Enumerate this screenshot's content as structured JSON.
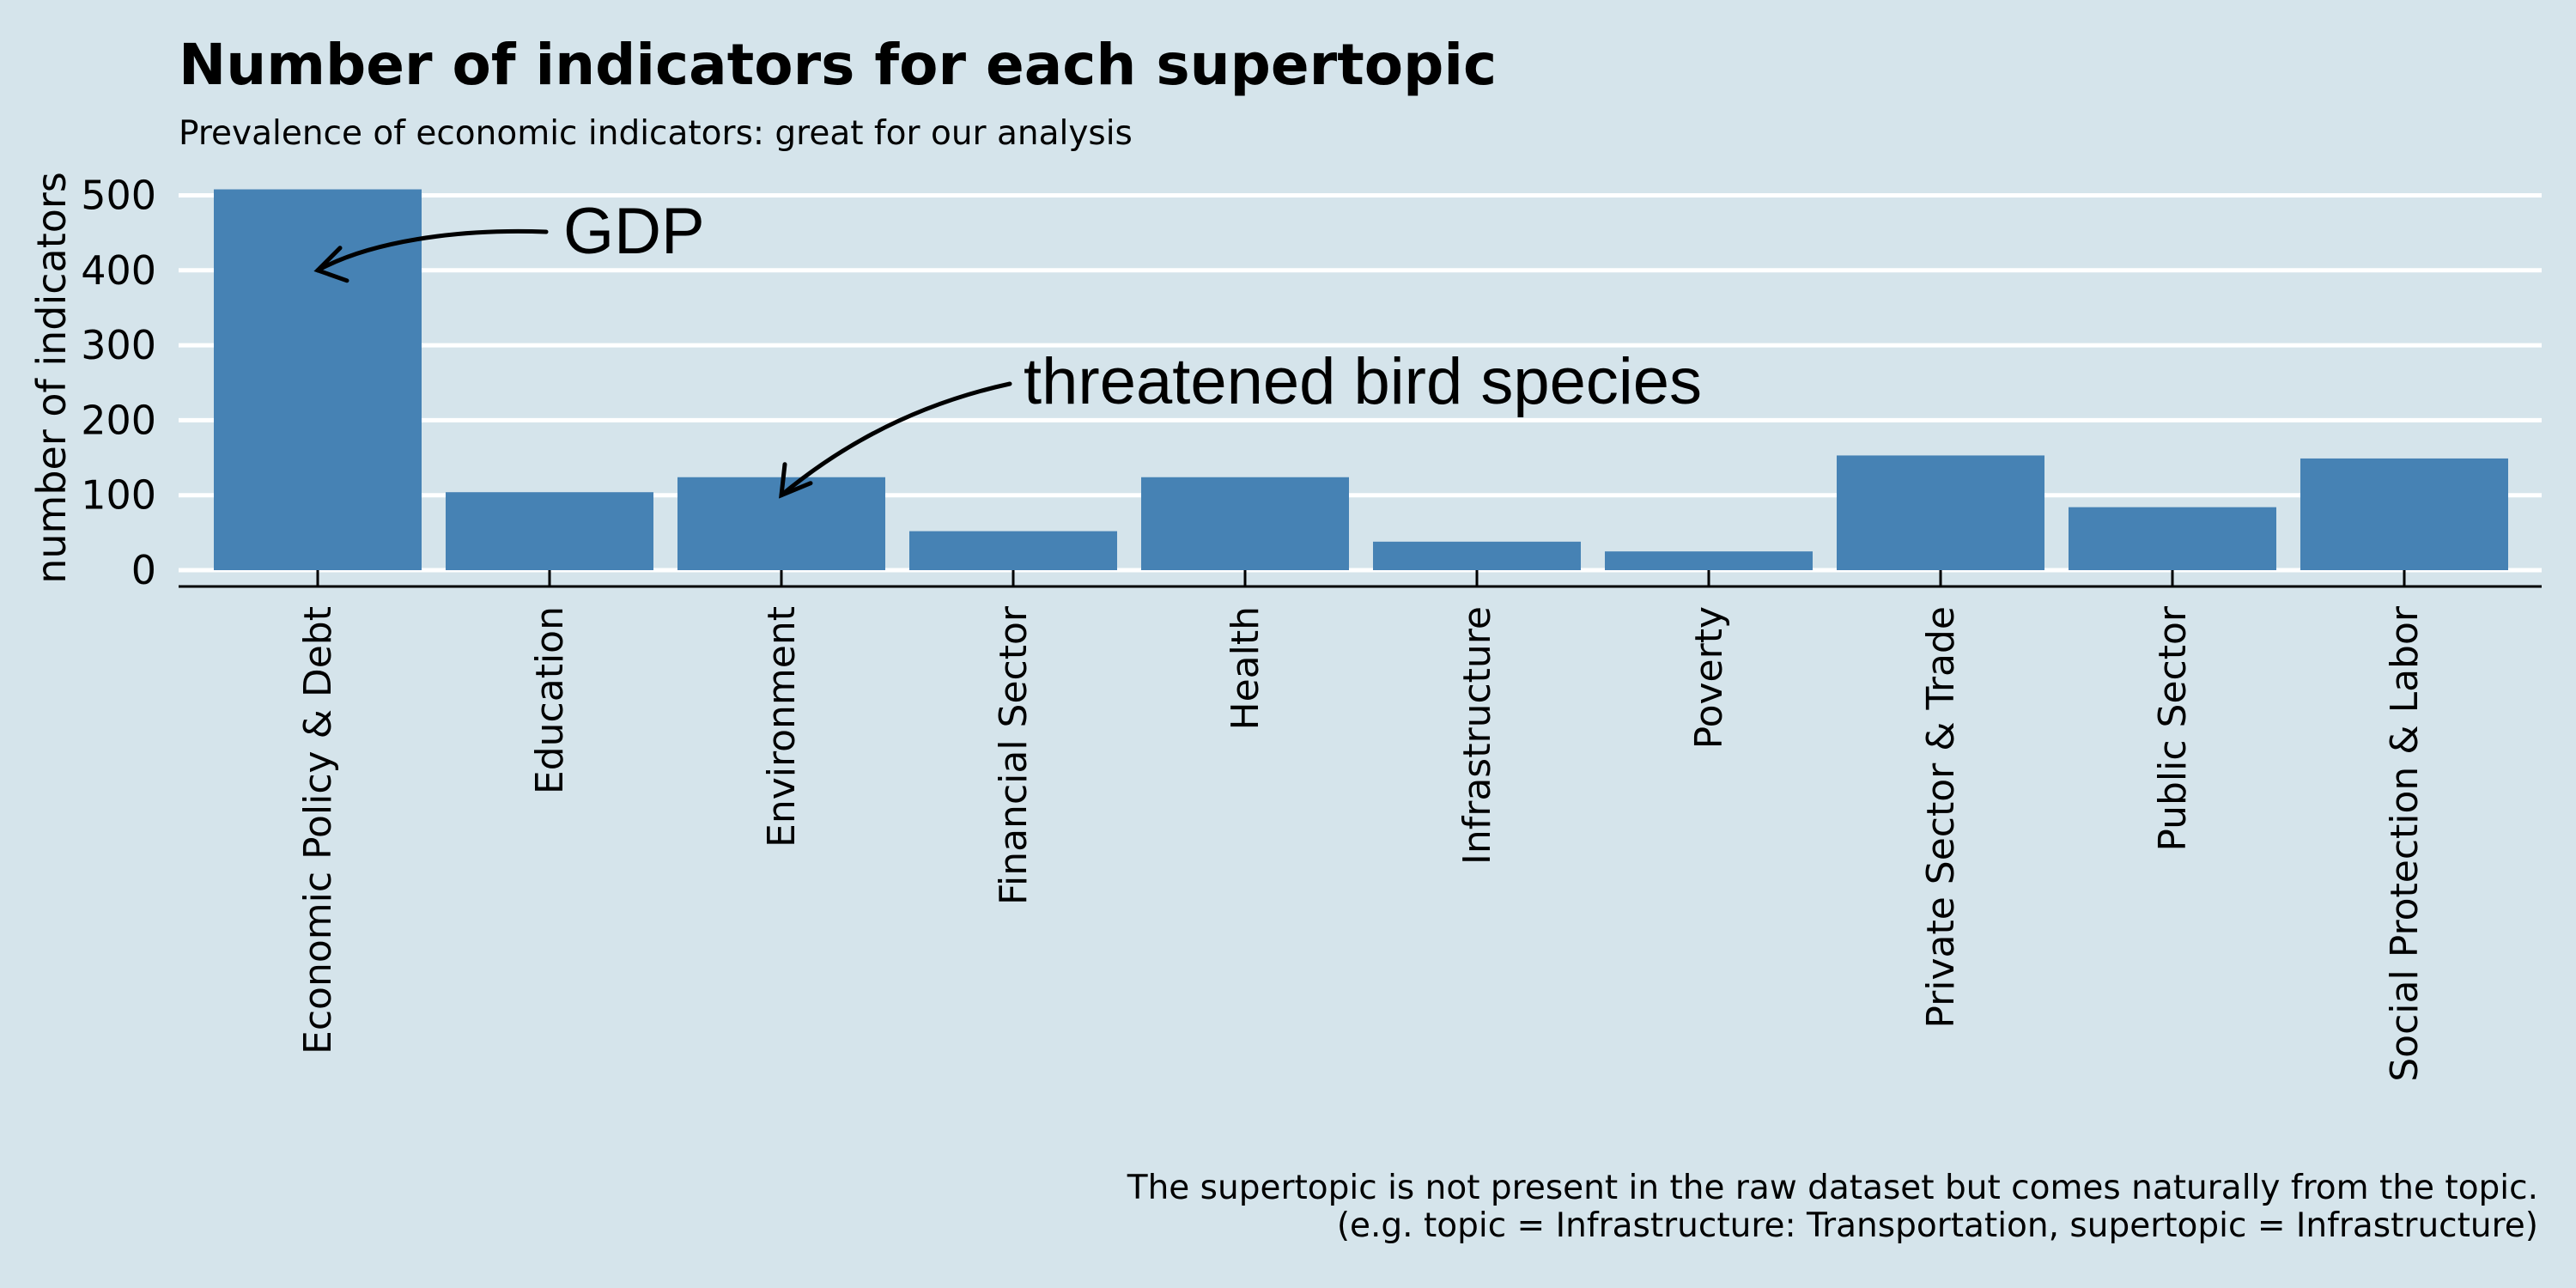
{
  "chart_data": {
    "type": "bar",
    "title": "Number of indicators for each supertopic",
    "subtitle": "Prevalence of economic indicators: great for our analysis",
    "xlabel": "",
    "ylabel": "number of indicators",
    "categories": [
      "Economic Policy & Debt",
      "Education",
      "Environment",
      "Financial Sector",
      "Health",
      "Infrastructure",
      "Poverty",
      "Private Sector & Trade",
      "Public Sector",
      "Social Protection & Labor"
    ],
    "values": [
      508,
      104,
      124,
      52,
      124,
      38,
      25,
      153,
      84,
      149
    ],
    "ylim": [
      0,
      500
    ],
    "yticks": [
      0,
      100,
      200,
      300,
      400,
      500
    ],
    "grid": "horizontal",
    "bar_color": "#4682b4",
    "background_color": "#d5e4eb",
    "annotations": [
      {
        "text": "GDP",
        "category": "Economic Policy & Debt",
        "value": 400
      },
      {
        "text": "threatened bird species",
        "category": "Environment",
        "value": 100
      }
    ],
    "caption": [
      "The supertopic is not present in the raw dataset but comes naturally from the topic.",
      "(e.g. topic = Infrastructure: Transportation, supertopic = Infrastructure)"
    ]
  }
}
